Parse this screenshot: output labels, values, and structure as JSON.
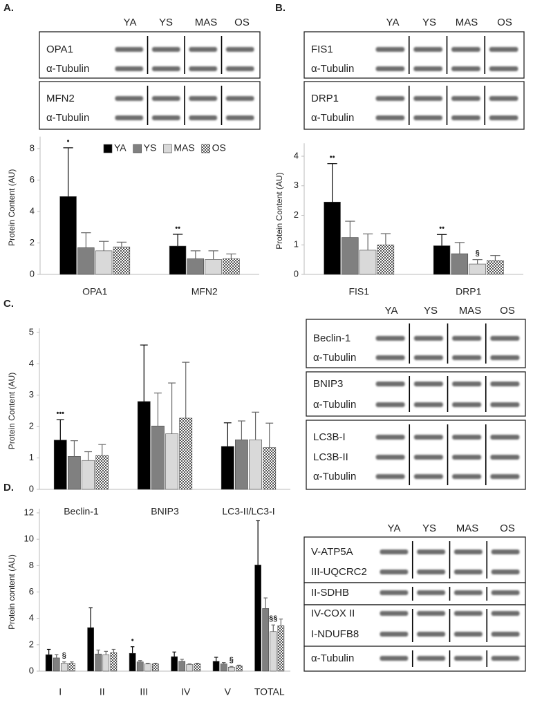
{
  "chart_data": [
    {
      "type": "bar",
      "panel": "A.",
      "y_label": "Protein Content (AU)",
      "legend": "top",
      "categories": [
        "OPA1",
        "MFN2"
      ],
      "series": [
        {
          "name": "YA",
          "color": "#000000",
          "values": [
            4.95,
            1.8
          ],
          "errors": [
            3.1,
            0.75
          ],
          "annotations": [
            "•",
            "••"
          ]
        },
        {
          "name": "YS",
          "color": "#808080",
          "values": [
            1.7,
            1.0
          ],
          "errors": [
            0.95,
            0.5
          ]
        },
        {
          "name": "MAS",
          "color": "#d9d9d9",
          "values": [
            1.5,
            0.95
          ],
          "errors": [
            0.6,
            0.55
          ]
        },
        {
          "name": "OS",
          "color": "#555555",
          "pattern": "checker",
          "values": [
            1.75,
            1.0
          ],
          "errors": [
            0.3,
            0.3
          ]
        }
      ],
      "ylim": [
        0,
        8.5
      ],
      "yticks": [
        0,
        2,
        4,
        6,
        8
      ]
    },
    {
      "type": "bar",
      "panel": "B.",
      "y_label": "Protein Content (AU)",
      "categories": [
        "FIS1",
        "DRP1"
      ],
      "series": [
        {
          "name": "YA",
          "color": "#000000",
          "values": [
            2.45,
            0.97
          ],
          "errors": [
            1.3,
            0.38
          ],
          "annotations": [
            "••",
            "••"
          ]
        },
        {
          "name": "YS",
          "color": "#808080",
          "values": [
            1.25,
            0.7
          ],
          "errors": [
            0.55,
            0.38
          ]
        },
        {
          "name": "MAS",
          "color": "#d9d9d9",
          "values": [
            0.82,
            0.35
          ],
          "errors": [
            0.55,
            0.15
          ],
          "annotations": [
            null,
            "§"
          ]
        },
        {
          "name": "OS",
          "color": "#555555",
          "pattern": "checker",
          "values": [
            1.0,
            0.47
          ],
          "errors": [
            0.38,
            0.17
          ]
        }
      ],
      "ylim": [
        0,
        4.3
      ],
      "yticks": [
        0,
        1,
        2,
        3,
        4
      ]
    },
    {
      "type": "bar",
      "panel": "C.",
      "y_label": "Protein Content (AU)",
      "categories": [
        "Beclin-1",
        "BNIP3",
        "LC3-II/LC3-I"
      ],
      "series": [
        {
          "name": "YA",
          "color": "#000000",
          "values": [
            1.57,
            2.8,
            1.37
          ],
          "errors": [
            0.65,
            1.8,
            0.75
          ],
          "annotations": [
            "•••",
            null,
            null
          ]
        },
        {
          "name": "YS",
          "color": "#808080",
          "values": [
            1.05,
            2.02,
            1.58
          ],
          "errors": [
            0.5,
            1.05,
            0.6
          ]
        },
        {
          "name": "MAS",
          "color": "#d9d9d9",
          "values": [
            0.92,
            1.77,
            1.58
          ],
          "errors": [
            0.28,
            1.62,
            0.88
          ]
        },
        {
          "name": "OS",
          "color": "#555555",
          "pattern": "checker",
          "values": [
            1.08,
            2.27,
            1.33
          ],
          "errors": [
            0.35,
            1.78,
            0.78
          ]
        }
      ],
      "ylim": [
        0,
        5
      ],
      "yticks": [
        0,
        1,
        2,
        3,
        4,
        5
      ]
    },
    {
      "type": "bar",
      "panel": "D.",
      "y_label": "Protein content (AU)",
      "categories": [
        "I",
        "II",
        "III",
        "IV",
        "V",
        "TOTAL"
      ],
      "series": [
        {
          "name": "YA",
          "color": "#000000",
          "values": [
            1.25,
            3.3,
            1.35,
            1.1,
            0.75,
            8.05
          ],
          "errors": [
            0.4,
            1.5,
            0.5,
            0.35,
            0.3,
            3.35
          ],
          "annotations": [
            null,
            null,
            "•",
            null,
            null,
            null
          ]
        },
        {
          "name": "YS",
          "color": "#808080",
          "values": [
            1.0,
            1.3,
            0.7,
            0.75,
            0.55,
            4.75
          ],
          "errors": [
            0.25,
            0.3,
            0.1,
            0.15,
            0.1,
            0.8
          ]
        },
        {
          "name": "MAS",
          "color": "#d9d9d9",
          "values": [
            0.6,
            1.25,
            0.55,
            0.5,
            0.3,
            3.0
          ],
          "errors": [
            0.1,
            0.25,
            0.05,
            0.05,
            0.05,
            0.5
          ],
          "annotations": [
            "§",
            null,
            null,
            null,
            "§",
            "§§"
          ]
        },
        {
          "name": "OS",
          "color": "#555555",
          "pattern": "checker",
          "values": [
            0.6,
            1.4,
            0.55,
            0.55,
            0.4,
            3.45
          ],
          "errors": [
            0.1,
            0.25,
            0.05,
            0.05,
            0.05,
            0.5
          ]
        }
      ],
      "ylim": [
        0,
        12
      ],
      "yticks": [
        0,
        2,
        4,
        6,
        8,
        10,
        12
      ]
    }
  ],
  "blots": [
    {
      "columns": [
        "YA",
        "YS",
        "MAS",
        "OS"
      ],
      "boxes": [
        [
          "OPA1",
          "α-Tubulin"
        ],
        [
          "MFN2",
          "α-Tubulin"
        ]
      ]
    },
    {
      "columns": [
        "YA",
        "YS",
        "MAS",
        "OS"
      ],
      "boxes": [
        [
          "FIS1",
          "α-Tubulin"
        ],
        [
          "DRP1",
          "α-Tubulin"
        ]
      ]
    },
    {
      "columns": [
        "YA",
        "YS",
        "MAS",
        "OS"
      ],
      "boxes": [
        [
          "Beclin-1",
          "α-Tubulin"
        ],
        [
          "BNIP3",
          "α-Tubulin"
        ],
        [
          "LC3B-I",
          "LC3B-II",
          "α-Tubulin"
        ]
      ]
    },
    {
      "columns": [
        "YA",
        "YS",
        "MAS",
        "OS"
      ],
      "boxes": [
        [
          "V-ATP5A",
          "III-UQCRC2"
        ],
        [
          "II-SDHB"
        ],
        [
          "IV-COX II",
          "I-NDUFB8"
        ],
        [
          "α-Tubulin"
        ]
      ]
    }
  ]
}
